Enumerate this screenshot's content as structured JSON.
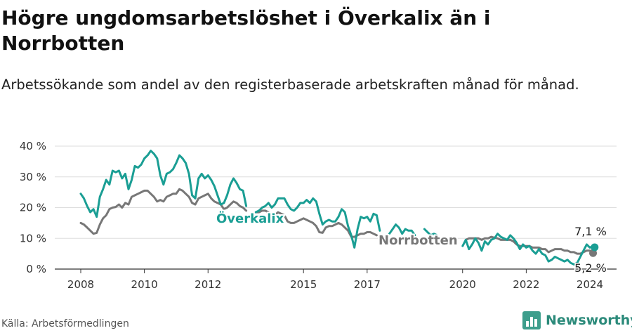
{
  "title": "Högre ungdomsarbetslöshet i Överkalix än i Norrbotten",
  "subtitle": "Arbetssökande som andel av den registerbaserade arbetskraften månad för månad.",
  "source": "Källa: Arbetsförmedlingen",
  "brand": "Newsworthy",
  "icons": {
    "brand": "bar-chart-logo-icon"
  },
  "colors": {
    "overkalix": "#1a9e94",
    "norrbotten": "#777777",
    "grid": "#dddddd",
    "axis": "#333333"
  },
  "chart_data": {
    "type": "line",
    "title": "Högre ungdomsarbetslöshet i Överkalix än i Norrbotten",
    "xlabel": "",
    "ylabel": "",
    "xlim": [
      2008,
      2024.3
    ],
    "ylim": [
      0,
      40
    ],
    "x_ticks": [
      {
        "value": 2008,
        "label": "2008"
      },
      {
        "value": 2010,
        "label": "2010"
      },
      {
        "value": 2012,
        "label": "2012"
      },
      {
        "value": 2015,
        "label": "2015"
      },
      {
        "value": 2017,
        "label": "2017"
      },
      {
        "value": 2020,
        "label": "2020"
      },
      {
        "value": 2022,
        "label": "2022"
      },
      {
        "value": 2024,
        "label": "2024"
      }
    ],
    "y_ticks": [
      {
        "value": 0,
        "label": "0 %"
      },
      {
        "value": 10,
        "label": "10 %"
      },
      {
        "value": 20,
        "label": "20 %"
      },
      {
        "value": 30,
        "label": "30 %"
      },
      {
        "value": 40,
        "label": "40 %"
      }
    ],
    "grid": true,
    "series": [
      {
        "name": "Överkalix",
        "label": "Överkalix",
        "color": "#1a9e94",
        "end_label": "7,1 %",
        "points": [
          [
            2008.0,
            24.5
          ],
          [
            2008.1,
            23
          ],
          [
            2008.2,
            20.5
          ],
          [
            2008.3,
            18.5
          ],
          [
            2008.4,
            19.5
          ],
          [
            2008.5,
            17
          ],
          [
            2008.6,
            23.5
          ],
          [
            2008.7,
            26
          ],
          [
            2008.8,
            29
          ],
          [
            2008.9,
            27.5
          ],
          [
            2009.0,
            32
          ],
          [
            2009.1,
            31.5
          ],
          [
            2009.2,
            32
          ],
          [
            2009.3,
            29.5
          ],
          [
            2009.4,
            31
          ],
          [
            2009.5,
            26
          ],
          [
            2009.6,
            29
          ],
          [
            2009.7,
            33.5
          ],
          [
            2009.8,
            33
          ],
          [
            2009.9,
            34
          ],
          [
            2010.0,
            36
          ],
          [
            2010.1,
            37
          ],
          [
            2010.2,
            38.5
          ],
          [
            2010.3,
            37.5
          ],
          [
            2010.4,
            36
          ],
          [
            2010.5,
            30.5
          ],
          [
            2010.6,
            27.5
          ],
          [
            2010.7,
            31
          ],
          [
            2010.8,
            31.5
          ],
          [
            2010.9,
            32.5
          ],
          [
            2011.0,
            34.5
          ],
          [
            2011.1,
            37
          ],
          [
            2011.2,
            36
          ],
          [
            2011.3,
            34.5
          ],
          [
            2011.4,
            31
          ],
          [
            2011.5,
            24
          ],
          [
            2011.6,
            23
          ],
          [
            2011.7,
            29.5
          ],
          [
            2011.8,
            31
          ],
          [
            2011.9,
            29.5
          ],
          [
            2012.0,
            30.5
          ],
          [
            2012.1,
            29
          ],
          [
            2012.2,
            27
          ],
          [
            2012.3,
            24
          ],
          [
            2012.4,
            21
          ],
          [
            2012.5,
            21.5
          ],
          [
            2012.6,
            24
          ],
          [
            2012.7,
            27.5
          ],
          [
            2012.8,
            29.5
          ],
          [
            2012.9,
            28
          ],
          [
            2013.0,
            26
          ],
          [
            2013.1,
            25.5
          ],
          [
            2013.2,
            20.5
          ],
          null,
          [
            2013.5,
            18.5
          ],
          [
            2013.6,
            19
          ],
          [
            2013.7,
            20
          ],
          [
            2013.8,
            20.5
          ],
          [
            2013.9,
            21.5
          ],
          [
            2014.0,
            20
          ],
          [
            2014.1,
            21
          ],
          [
            2014.2,
            23
          ],
          [
            2014.3,
            23
          ],
          [
            2014.4,
            23
          ],
          [
            2014.5,
            21
          ],
          [
            2014.6,
            19.5
          ],
          [
            2014.7,
            19
          ],
          [
            2014.8,
            20
          ],
          [
            2014.9,
            21.5
          ],
          [
            2015.0,
            21.5
          ],
          [
            2015.1,
            22.5
          ],
          [
            2015.2,
            21.5
          ],
          [
            2015.3,
            23
          ],
          [
            2015.4,
            22
          ],
          [
            2015.5,
            18
          ],
          [
            2015.6,
            14.5
          ],
          [
            2015.7,
            15.5
          ],
          [
            2015.8,
            16
          ],
          [
            2015.9,
            15.5
          ],
          [
            2016.0,
            15.5
          ],
          [
            2016.1,
            17
          ],
          [
            2016.2,
            19.5
          ],
          [
            2016.3,
            18.5
          ],
          [
            2016.4,
            14
          ],
          [
            2016.5,
            11
          ],
          [
            2016.6,
            7
          ],
          [
            2016.7,
            13
          ],
          [
            2016.8,
            17
          ],
          [
            2016.9,
            16.5
          ],
          [
            2017.0,
            17
          ],
          [
            2017.1,
            15.5
          ],
          [
            2017.2,
            18
          ],
          [
            2017.3,
            17.5
          ],
          [
            2017.4,
            12.5
          ],
          null,
          [
            2017.7,
            11.5
          ],
          [
            2017.8,
            13
          ],
          [
            2017.9,
            14.5
          ],
          [
            2018.0,
            13.5
          ],
          [
            2018.1,
            11.5
          ],
          [
            2018.2,
            13
          ],
          [
            2018.3,
            12.5
          ],
          [
            2018.4,
            12.5
          ],
          [
            2018.5,
            11
          ],
          null,
          [
            2018.8,
            13
          ],
          [
            2018.9,
            12
          ],
          [
            2019.0,
            11
          ],
          [
            2019.1,
            11.5
          ],
          [
            2019.2,
            11
          ],
          null,
          [
            2020.0,
            7.5
          ],
          [
            2020.1,
            9.5
          ],
          [
            2020.2,
            6.5
          ],
          [
            2020.3,
            8
          ],
          [
            2020.4,
            10
          ],
          [
            2020.5,
            8.5
          ],
          [
            2020.6,
            6
          ],
          [
            2020.7,
            9
          ],
          [
            2020.8,
            8
          ],
          [
            2020.9,
            9.5
          ],
          [
            2021.0,
            10
          ],
          [
            2021.1,
            11.5
          ],
          [
            2021.2,
            10.5
          ],
          [
            2021.3,
            10
          ],
          [
            2021.4,
            9.5
          ],
          [
            2021.5,
            11
          ],
          [
            2021.6,
            10
          ],
          [
            2021.7,
            8.5
          ],
          [
            2021.8,
            6.5
          ],
          [
            2021.9,
            8
          ],
          [
            2022.0,
            7
          ],
          [
            2022.1,
            7.5
          ],
          [
            2022.2,
            6
          ],
          [
            2022.3,
            5
          ],
          [
            2022.4,
            6.5
          ],
          [
            2022.5,
            5
          ],
          [
            2022.6,
            4.5
          ],
          [
            2022.7,
            2.5
          ],
          [
            2022.8,
            3
          ],
          [
            2022.9,
            4
          ],
          [
            2023.0,
            3.5
          ],
          [
            2023.1,
            3
          ],
          [
            2023.2,
            2.5
          ],
          [
            2023.3,
            3
          ],
          [
            2023.4,
            2
          ],
          [
            2023.5,
            1.5
          ],
          [
            2023.6,
            2
          ],
          [
            2023.7,
            4
          ],
          [
            2023.8,
            6
          ],
          [
            2023.9,
            8
          ],
          [
            2024.0,
            7
          ],
          [
            2024.1,
            7.5
          ],
          [
            2024.15,
            7.1
          ]
        ]
      },
      {
        "name": "Norrbotten",
        "label": "Norrbotten",
        "color": "#777777",
        "end_label": "5,2 %",
        "points": [
          [
            2008.0,
            15
          ],
          [
            2008.1,
            14.5
          ],
          [
            2008.2,
            13.5
          ],
          [
            2008.3,
            12.5
          ],
          [
            2008.4,
            11.5
          ],
          [
            2008.5,
            11.8
          ],
          [
            2008.6,
            14.5
          ],
          [
            2008.7,
            16.5
          ],
          [
            2008.8,
            17.5
          ],
          [
            2008.9,
            19.5
          ],
          [
            2009.0,
            20
          ],
          [
            2009.1,
            20.2
          ],
          [
            2009.2,
            21
          ],
          [
            2009.3,
            20
          ],
          [
            2009.4,
            21.5
          ],
          [
            2009.5,
            21
          ],
          [
            2009.6,
            23.5
          ],
          [
            2009.7,
            24
          ],
          [
            2009.8,
            24.5
          ],
          [
            2009.9,
            25
          ],
          [
            2010.0,
            25.5
          ],
          [
            2010.1,
            25.5
          ],
          [
            2010.2,
            24.5
          ],
          [
            2010.3,
            23.5
          ],
          [
            2010.4,
            22
          ],
          [
            2010.5,
            22.5
          ],
          [
            2010.6,
            22
          ],
          [
            2010.7,
            23.5
          ],
          [
            2010.8,
            24
          ],
          [
            2010.9,
            24.5
          ],
          [
            2011.0,
            24.5
          ],
          [
            2011.1,
            26
          ],
          [
            2011.2,
            25.5
          ],
          [
            2011.3,
            24.5
          ],
          [
            2011.4,
            23.5
          ],
          [
            2011.5,
            21.5
          ],
          [
            2011.6,
            21
          ],
          [
            2011.7,
            23
          ],
          [
            2011.8,
            23.5
          ],
          [
            2011.9,
            24
          ],
          [
            2012.0,
            24.5
          ],
          [
            2012.1,
            23
          ],
          [
            2012.2,
            22
          ],
          [
            2012.3,
            21.5
          ],
          [
            2012.4,
            21
          ],
          [
            2012.5,
            19.5
          ],
          [
            2012.6,
            20
          ],
          [
            2012.7,
            21
          ],
          [
            2012.8,
            22
          ],
          [
            2012.9,
            21.5
          ],
          [
            2013.0,
            20.5
          ],
          [
            2013.1,
            20
          ],
          [
            2013.2,
            19
          ],
          null,
          [
            2013.5,
            18.5
          ],
          [
            2013.6,
            18.5
          ],
          [
            2013.7,
            19
          ],
          [
            2013.8,
            19
          ],
          [
            2013.9,
            18.5
          ],
          [
            2014.0,
            17
          ],
          [
            2014.1,
            17.5
          ],
          [
            2014.2,
            18.5
          ],
          [
            2014.3,
            18
          ],
          [
            2014.4,
            17.5
          ],
          [
            2014.5,
            15.5
          ],
          [
            2014.6,
            15
          ],
          [
            2014.7,
            15
          ],
          [
            2014.8,
            15.5
          ],
          [
            2014.9,
            16
          ],
          [
            2015.0,
            16.5
          ],
          [
            2015.1,
            16
          ],
          [
            2015.2,
            15.5
          ],
          [
            2015.3,
            15
          ],
          [
            2015.4,
            14
          ],
          [
            2015.5,
            12
          ],
          [
            2015.6,
            11.8
          ],
          [
            2015.7,
            13.5
          ],
          [
            2015.8,
            14
          ],
          [
            2015.9,
            14
          ],
          [
            2016.0,
            14.5
          ],
          [
            2016.1,
            15
          ],
          [
            2016.2,
            14.5
          ],
          [
            2016.3,
            13.5
          ],
          [
            2016.4,
            12.5
          ],
          [
            2016.5,
            10.5
          ],
          [
            2016.6,
            10.5
          ],
          [
            2016.7,
            11
          ],
          [
            2016.8,
            11.5
          ],
          [
            2016.9,
            11.5
          ],
          [
            2017.0,
            12
          ],
          [
            2017.1,
            12
          ],
          [
            2017.2,
            11.5
          ],
          [
            2017.3,
            11
          ],
          null,
          [
            2020.1,
            9.5
          ],
          [
            2020.2,
            10
          ],
          [
            2020.3,
            10
          ],
          [
            2020.4,
            10
          ],
          [
            2020.5,
            10
          ],
          [
            2020.6,
            9.5
          ],
          [
            2020.7,
            10
          ],
          [
            2020.8,
            10
          ],
          [
            2020.9,
            10.5
          ],
          [
            2021.0,
            10.2
          ],
          [
            2021.1,
            10
          ],
          [
            2021.2,
            9.5
          ],
          [
            2021.3,
            9.5
          ],
          [
            2021.4,
            9.5
          ],
          [
            2021.5,
            9.5
          ],
          [
            2021.6,
            9
          ],
          [
            2021.7,
            8
          ],
          [
            2021.8,
            7.5
          ],
          [
            2021.9,
            7.5
          ],
          [
            2022.0,
            7.5
          ],
          [
            2022.1,
            7.5
          ],
          [
            2022.2,
            7
          ],
          [
            2022.3,
            7
          ],
          [
            2022.4,
            7
          ],
          [
            2022.5,
            6.5
          ],
          [
            2022.6,
            6.5
          ],
          [
            2022.7,
            5.5
          ],
          [
            2022.8,
            6
          ],
          [
            2022.9,
            6.5
          ],
          [
            2023.0,
            6.5
          ],
          [
            2023.1,
            6.5
          ],
          [
            2023.2,
            6
          ],
          [
            2023.3,
            6
          ],
          [
            2023.4,
            5.5
          ],
          [
            2023.5,
            5.5
          ],
          [
            2023.6,
            5
          ],
          [
            2023.7,
            5
          ],
          [
            2023.8,
            5.5
          ],
          [
            2023.9,
            6
          ],
          [
            2024.0,
            6
          ],
          [
            2024.1,
            5.2
          ]
        ]
      }
    ]
  }
}
